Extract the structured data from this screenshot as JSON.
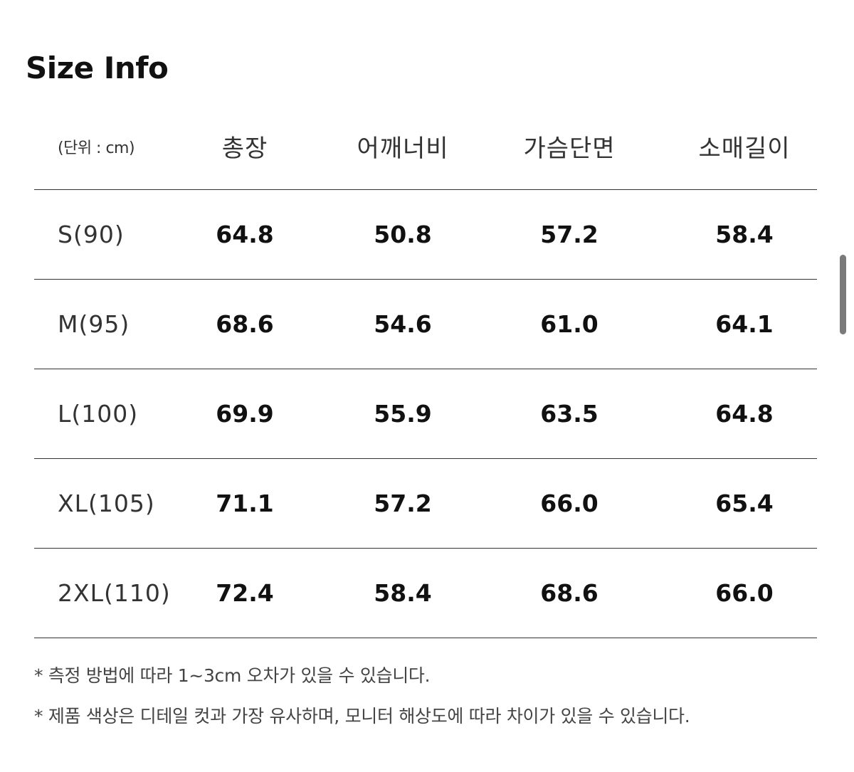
{
  "title": "Size Info",
  "table": {
    "unit_label": "(단위 : cm)",
    "columns": [
      "총장",
      "어깨너비",
      "가슴단면",
      "소매길이"
    ],
    "rows": [
      {
        "size": "S(90)",
        "values": [
          "64.8",
          "50.8",
          "57.2",
          "58.4"
        ]
      },
      {
        "size": "M(95)",
        "values": [
          "68.6",
          "54.6",
          "61.0",
          "64.1"
        ]
      },
      {
        "size": "L(100)",
        "values": [
          "69.9",
          "55.9",
          "63.5",
          "64.8"
        ]
      },
      {
        "size": "XL(105)",
        "values": [
          "71.1",
          "57.2",
          "66.0",
          "65.4"
        ]
      },
      {
        "size": "2XL(110)",
        "values": [
          "72.4",
          "58.4",
          "68.6",
          "66.0"
        ]
      }
    ]
  },
  "notes": [
    "* 측정 방법에 따라 1~3cm 오차가 있을 수 있습니다.",
    "* 제품 색상은 디테일 컷과 가장 유사하며, 모니터 해상도에 따라 차이가 있을 수 있습니다."
  ]
}
